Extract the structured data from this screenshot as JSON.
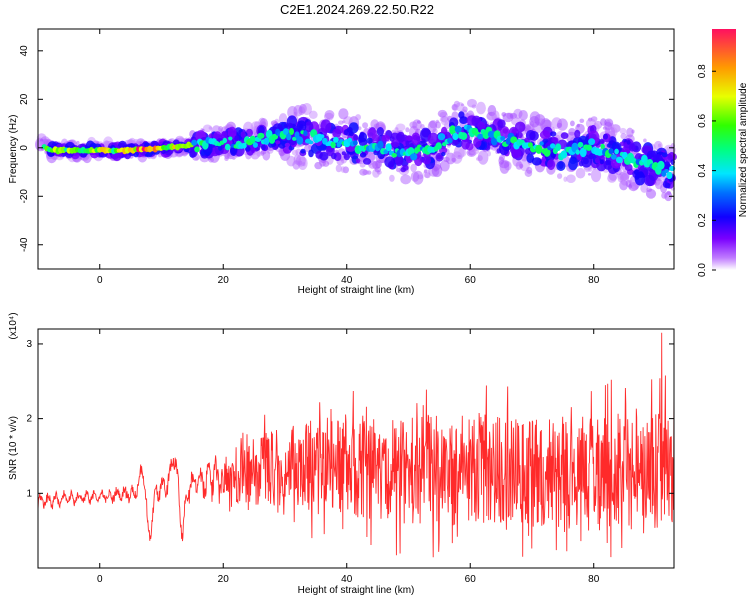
{
  "title": "C2E1.2024.269.22.50.R22",
  "chart_data": [
    {
      "type": "heatmap",
      "xlabel": "Height of straight line (km)",
      "ylabel": "Frequency (Hz)",
      "xlim": [
        -10,
        93
      ],
      "ylim": [
        -50,
        49
      ],
      "xticks": [
        "0",
        "20",
        "40",
        "60",
        "80"
      ],
      "yticks": [
        "-40",
        "-20",
        "0",
        "20",
        "40"
      ],
      "colorbar": {
        "label": "Normalized spectral amplitude",
        "range": [
          0,
          0.97
        ],
        "ticks": [
          "0.0",
          "0.2",
          "0.4",
          "0.6",
          "0.8"
        ],
        "colormap": "rainbow (violet → blue → cyan → green → yellow → red)"
      },
      "ridge": {
        "x": [
          -10,
          -8,
          -5,
          0,
          5,
          10,
          15,
          20,
          25,
          30,
          35,
          40,
          45,
          50,
          55,
          58,
          62,
          66,
          70,
          75,
          80,
          85,
          90,
          93
        ],
        "y": [
          2,
          -1,
          -1,
          -1,
          -1,
          0,
          1,
          2,
          3,
          5,
          4,
          2,
          0,
          -3,
          2,
          7,
          6,
          3,
          1,
          -2,
          1,
          -4,
          -8,
          -10
        ]
      }
    },
    {
      "type": "line",
      "xlabel": "Height of straight line (km)",
      "ylabel": "SNR (10 * v/v)",
      "scale_note": "(x10⁴)",
      "xlim": [
        -10,
        93
      ],
      "ylim": [
        0,
        3.2
      ],
      "xticks": [
        "0",
        "20",
        "40",
        "60",
        "80"
      ],
      "yticks": [
        "1",
        "2",
        "3"
      ],
      "line_color": "#ff2a2a",
      "envelope": {
        "x": [
          -10,
          0,
          5,
          15,
          20,
          25,
          30,
          35,
          40,
          50,
          60,
          70,
          80,
          90,
          93
        ],
        "mean": [
          0.9,
          0.95,
          1.0,
          1.15,
          1.2,
          1.3,
          1.35,
          1.35,
          1.35,
          1.3,
          1.3,
          1.3,
          1.3,
          1.3,
          1.3
        ],
        "amp": [
          0.12,
          0.08,
          0.12,
          0.2,
          0.3,
          0.45,
          0.55,
          0.6,
          0.65,
          0.75,
          0.75,
          0.75,
          0.75,
          0.8,
          0.8
        ]
      },
      "features": [
        {
          "x": 7.2,
          "y": 1.5
        },
        {
          "x": 7.9,
          "y": 0.3
        },
        {
          "x": 12.2,
          "y": 1.55
        },
        {
          "x": 13.3,
          "y": 0.5
        },
        {
          "x": 91,
          "y": 3.15
        }
      ]
    }
  ]
}
